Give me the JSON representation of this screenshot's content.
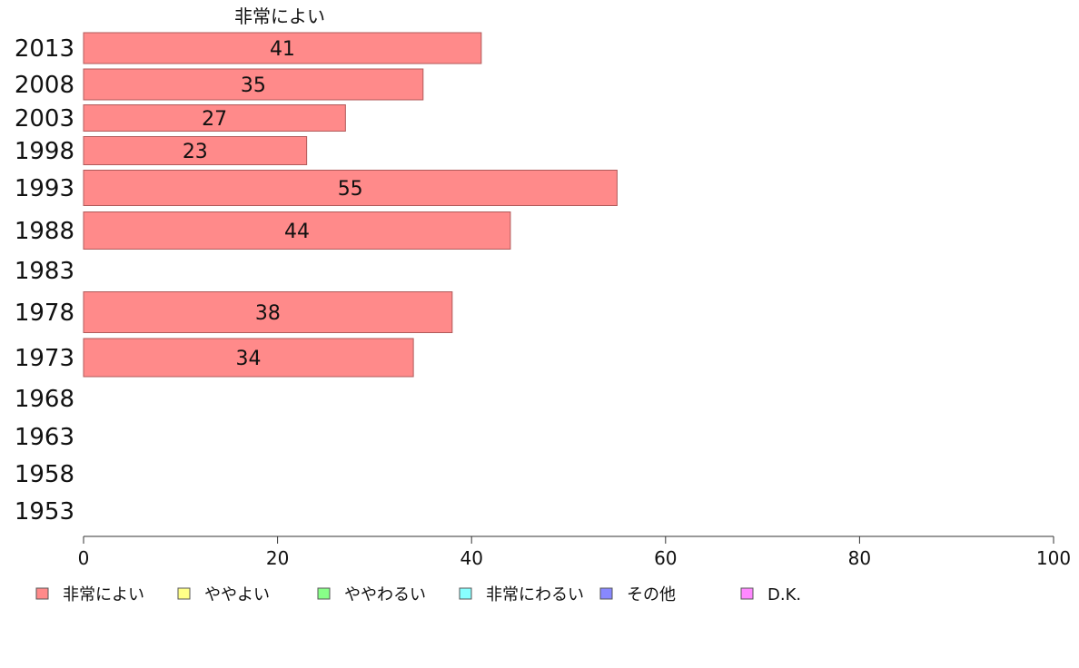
{
  "chart_data": {
    "type": "bar",
    "orientation": "horizontal",
    "series_title": "非常によい",
    "categories": [
      "2013",
      "2008",
      "2003",
      "1998",
      "1993",
      "1988",
      "1983",
      "1978",
      "1973",
      "1968",
      "1963",
      "1958",
      "1953"
    ],
    "series": [
      {
        "name": "非常によい",
        "color": "#ff8a8a",
        "values": [
          41,
          35,
          27,
          23,
          55,
          44,
          null,
          38,
          34,
          null,
          null,
          null,
          null
        ]
      }
    ],
    "xlim": [
      0,
      100
    ],
    "xticks": [
      0,
      20,
      40,
      60,
      80,
      100
    ],
    "legend": {
      "placement": "bottom",
      "items": [
        {
          "label": "非常によい",
          "color": "#ff8a8a"
        },
        {
          "label": "ややよい",
          "color": "#ffff88"
        },
        {
          "label": "ややわるい",
          "color": "#88ff88"
        },
        {
          "label": "非常にわるい",
          "color": "#88ffff"
        },
        {
          "label": "その他",
          "color": "#8888ff"
        },
        {
          "label": "D.K.",
          "color": "#ff88ff"
        }
      ]
    }
  }
}
